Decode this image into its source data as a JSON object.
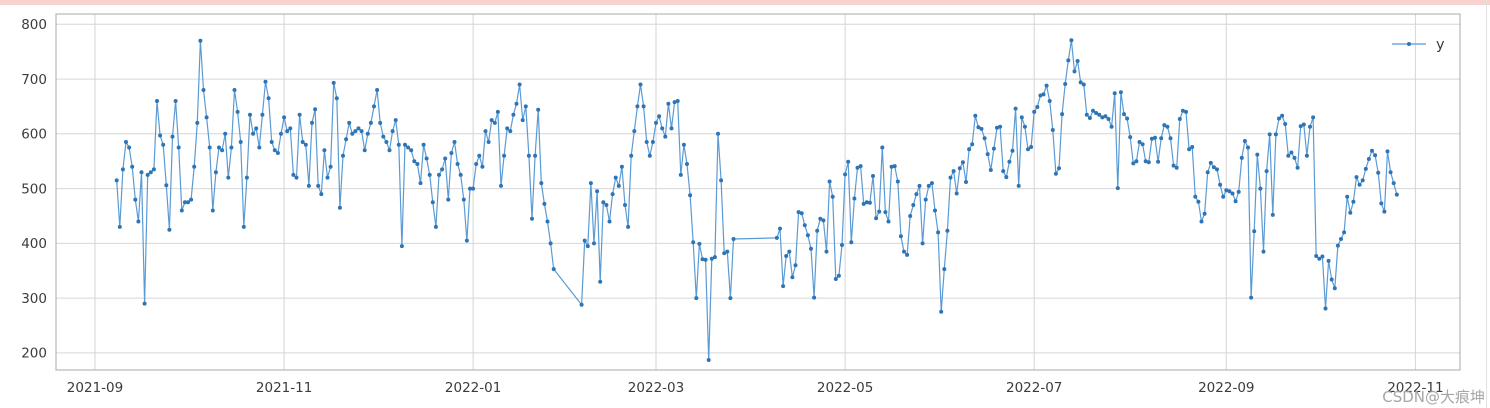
{
  "page": {
    "top_strip_color": "#f8d2cf",
    "watermark": "CSDN@大痕坤"
  },
  "chart_data": {
    "type": "line",
    "title": "",
    "xlabel": "",
    "ylabel": "",
    "grid": true,
    "legend_position": "top-right",
    "legend": [
      {
        "label": "y",
        "marker_color": "#2e75b6",
        "line_color": "#5b9bd5"
      }
    ],
    "colors": {
      "line": "#5b9bd5",
      "marker": "#2e75b6",
      "gridline": "#d6d6d6",
      "axis_border": "#a8a8a8",
      "tick_label": "#3c3c3c"
    },
    "y_axis": {
      "ticks": [
        200,
        300,
        400,
        500,
        600,
        700,
        800
      ],
      "range": [
        170,
        820
      ]
    },
    "x_axis": {
      "range": [
        "2021-08-19",
        "2022-11-15"
      ],
      "ticks": [
        {
          "label": "2021-09",
          "date": "2021-09-01"
        },
        {
          "label": "2021-11",
          "date": "2021-11-01"
        },
        {
          "label": "2022-01",
          "date": "2022-01-01"
        },
        {
          "label": "2022-03",
          "date": "2022-03-01"
        },
        {
          "label": "2022-05",
          "date": "2022-05-01"
        },
        {
          "label": "2022-07",
          "date": "2022-07-01"
        },
        {
          "label": "2022-09",
          "date": "2022-09-01"
        },
        {
          "label": "2022-11",
          "date": "2022-11-01"
        }
      ]
    },
    "series": [
      {
        "name": "y",
        "frequency": "daily",
        "runs": [
          {
            "start": "2021-09-08",
            "values": [
              515,
              430,
              535,
              585,
              575,
              540,
              480,
              440,
              530,
              290,
              525,
              530,
              535,
              660,
              597,
              580,
              506,
              425,
              595,
              660,
              575,
              460,
              475,
              475,
              480,
              540,
              620,
              770,
              680,
              630,
              575,
              460,
              530,
              575,
              570,
              600,
              520,
              575,
              680,
              640,
              585,
              430,
              520,
              635,
              600,
              610,
              575,
              635,
              695,
              665,
              585,
              570,
              565,
              600,
              630,
              605,
              610,
              525,
              520,
              635,
              585,
              580,
              505,
              620,
              645,
              505,
              490,
              570,
              520,
              540,
              693,
              665,
              465,
              560,
              590,
              620,
              600,
              605,
              610,
              605,
              570,
              600,
              620,
              650,
              680,
              620,
              595,
              585,
              570,
              605,
              625,
              580,
              395,
              580,
              575,
              570,
              550,
              545,
              510,
              580,
              555,
              525,
              475,
              430,
              525,
              535,
              555,
              480,
              565,
              585,
              545,
              525,
              480,
              405,
              500,
              500,
              545,
              560,
              540,
              605,
              585,
              625,
              620,
              640,
              505,
              560,
              610,
              605,
              635,
              655,
              690,
              625,
              650,
              560,
              445,
              560,
              644,
              510,
              472,
              440,
              400,
              353
            ]
          },
          {
            "start": "2022-02-05",
            "values": [
              288,
              405,
              395,
              510,
              400,
              495,
              330,
              475,
              470,
              440,
              490,
              520,
              505,
              540,
              470,
              430,
              560,
              605,
              650,
              690,
              650,
              585,
              560,
              585,
              620,
              632,
              610,
              595,
              655,
              610,
              658,
              660,
              525,
              580,
              545,
              488,
              402,
              300,
              399,
              371,
              370,
              187,
              372,
              375,
              600,
              515,
              382,
              385,
              300,
              408
            ]
          },
          {
            "start": "2022-04-09",
            "values": [
              410,
              427,
              322,
              377,
              385,
              338,
              360,
              457,
              455,
              433,
              415,
              390,
              301,
              423,
              445,
              442,
              385,
              513,
              485,
              335,
              341,
              397,
              526,
              549,
              402,
              482,
              538,
              541,
              472,
              475,
              474,
              523,
              446,
              458,
              575,
              457,
              440,
              540,
              541,
              513,
              413,
              385,
              379,
              450,
              470,
              490,
              505,
              400,
              480,
              505,
              510,
              460,
              420,
              275,
              353,
              423,
              520,
              532,
              491,
              537,
              548,
              512,
              572,
              581,
              633,
              612,
              609,
              592,
              563,
              534,
              573,
              611,
              613,
              532,
              521,
              549,
              569,
              646,
              505,
              630,
              613,
              572,
              576,
              640,
              649,
              670,
              672,
              688,
              660,
              607,
              527,
              537,
              636,
              691,
              734,
              771,
              714,
              733,
              694,
              690,
              635,
              629,
              642,
              638,
              635,
              630,
              632,
              627,
              613,
              674,
              501,
              676,
              636,
              628,
              594,
              546,
              550,
              585,
              581,
              550,
              548,
              591,
              593,
              549,
              592,
              616,
              613,
              592,
              542,
              538,
              627,
              642,
              640,
              572,
              576,
              485,
              476,
              440,
              454,
              530,
              547,
              539,
              535,
              507,
              485,
              497,
              495,
              491,
              477,
              494,
              556,
              587,
              575,
              301,
              422,
              562,
              500,
              385,
              532,
              599,
              452,
              599,
              628,
              633,
              618,
              560,
              566,
              556,
              538,
              614,
              617,
              560,
              613,
              630,
              377,
              372,
              376,
              281,
              368,
              334,
              318,
              396,
              408,
              420,
              485,
              456,
              476,
              521,
              507,
              515,
              536,
              554,
              569,
              561,
              529,
              473,
              458,
              568,
              530,
              510,
              489
            ]
          }
        ]
      }
    ]
  }
}
